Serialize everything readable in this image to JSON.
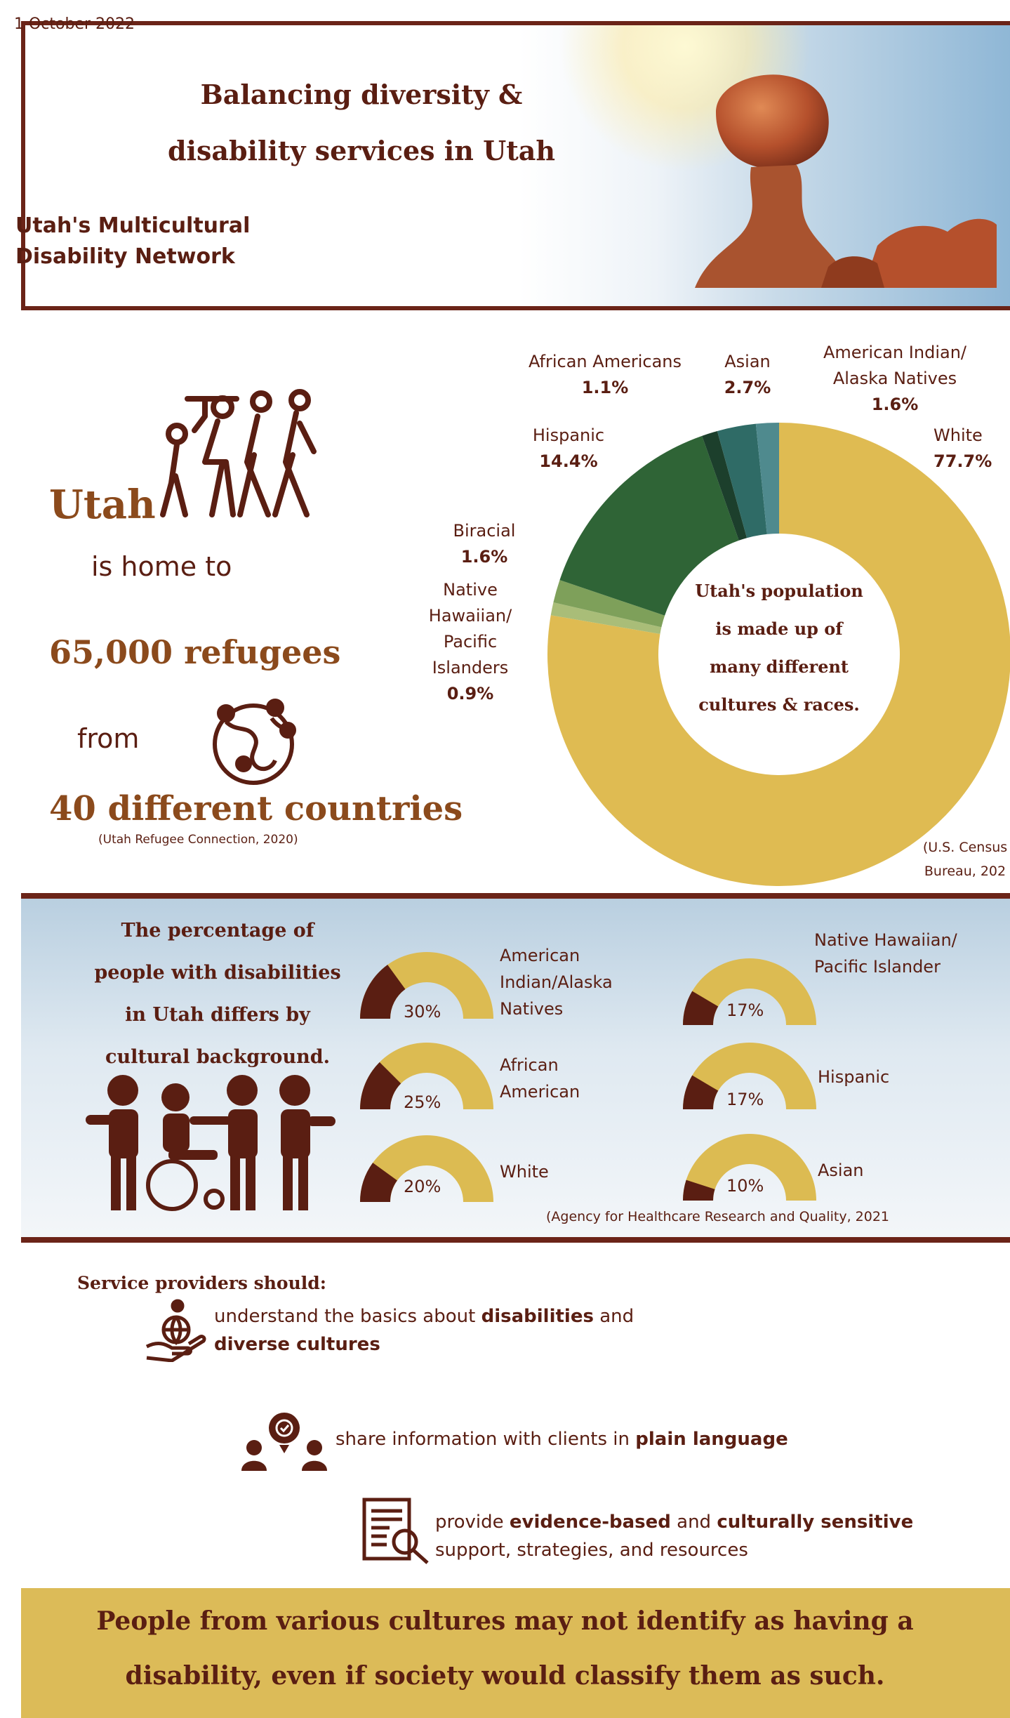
{
  "header": {
    "date": "1 October 2022",
    "title_line1": "Balancing diversity &",
    "title_line2": "disability services in Utah",
    "network_line1": "Utah's Multicultural",
    "network_line2": "Disability Network"
  },
  "population": {
    "utah": "Utah",
    "home_to": "is home to",
    "refugees": "65,000 refugees",
    "from": "from",
    "countries": "40 different countries",
    "refugee_source": "(Utah Refugee Connection, 2020)",
    "center_line1": "Utah's population",
    "center_line2": "is made up of",
    "center_line3": "many different",
    "center_line4": "cultures & races.",
    "census_line1": "(U.S. Census",
    "census_line2": "Bureau, 202",
    "segments": [
      {
        "label": "White",
        "value": "77.7%",
        "pct": 77.7,
        "color": "#dfbb52"
      },
      {
        "label": "Native Hawaiian/ Pacific Islanders",
        "value": "0.9%",
        "pct": 0.9,
        "color": "#a9bd78"
      },
      {
        "label": "Biracial",
        "value": "1.6%",
        "pct": 1.6,
        "color": "#7ea05a"
      },
      {
        "label": "Hispanic",
        "value": "14.4%",
        "pct": 14.4,
        "color": "#2f6436"
      },
      {
        "label": "African Americans",
        "value": "1.1%",
        "pct": 1.1,
        "color": "#1c3f2c"
      },
      {
        "label": "Asian",
        "value": "2.7%",
        "pct": 2.7,
        "color": "#2f6b66"
      },
      {
        "label": "American Indian/ Alaska Natives",
        "value": "1.6%",
        "pct": 1.6,
        "color": "#4f8a8e"
      }
    ],
    "labels": {
      "african_american_name": "African Americans",
      "african_american_val": "1.1%",
      "asian_name": "Asian",
      "asian_val": "2.7%",
      "american_indian_l1": "American Indian/",
      "american_indian_l2": "Alaska Natives",
      "american_indian_val": "1.6%",
      "white_name": "White",
      "white_val": "77.7%",
      "hispanic_name": "Hispanic",
      "hispanic_val": "14.4%",
      "biracial_name": "Biracial",
      "biracial_val": "1.6%",
      "nhpi_l1": "Native",
      "nhpi_l2": "Hawaiian/",
      "nhpi_l3": "Pacific",
      "nhpi_l4": "Islanders",
      "nhpi_val": "0.9%"
    }
  },
  "disability": {
    "title_line1": "The percentage of",
    "title_line2": "people with disabilities",
    "title_line3": "in Utah differs by",
    "title_line4": "cultural background.",
    "source": "(Agency for Healthcare Research and Quality, 2021",
    "gauges": [
      {
        "pct_text": "30%",
        "value": 30,
        "label_lines": [
          "American",
          "Indian/Alaska",
          "Natives"
        ]
      },
      {
        "pct_text": "25%",
        "value": 25,
        "label_lines": [
          "African",
          "American"
        ]
      },
      {
        "pct_text": "20%",
        "value": 20,
        "label_lines": [
          "White"
        ]
      },
      {
        "pct_text": "17%",
        "value": 17,
        "label_lines": [
          "Native Hawaiian/",
          "Pacific Islander"
        ]
      },
      {
        "pct_text": "17%",
        "value": 17,
        "label_lines": [
          "Hispanic"
        ]
      },
      {
        "pct_text": "10%",
        "value": 10,
        "label_lines": [
          "Asian"
        ]
      }
    ],
    "colors": {
      "fill": "#5a1e12",
      "track": "#dcbb52"
    }
  },
  "service": {
    "title": "Service providers should:",
    "item1_a": "understand the basics about ",
    "item1_b": "disabilities",
    "item1_c": " and",
    "item1_d": "diverse cultures",
    "item2_a": "share information with clients in ",
    "item2_b": "plain language",
    "item3_a": "provide ",
    "item3_b": "evidence-based",
    "item3_c": " and ",
    "item3_d": "culturally sensitive",
    "item3_e": "support, strategies, and resources"
  },
  "footer": {
    "line1": "People from various cultures may not identify as having a",
    "line2": "disability, even if society would classify them as such."
  },
  "colors": {
    "brown": "#5a1e12",
    "accent_brown": "#8b4a1c",
    "border": "#6b2418",
    "gold": "#dcbb58"
  }
}
